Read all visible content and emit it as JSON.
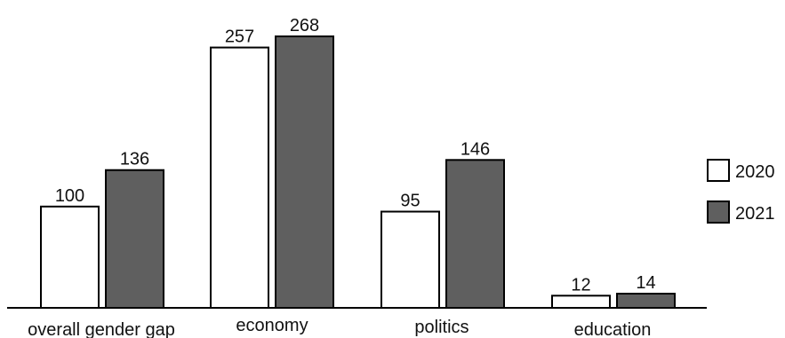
{
  "chart_data": {
    "type": "bar",
    "categories": [
      "overall gender gap",
      "economy",
      "politics",
      "education"
    ],
    "series": [
      {
        "name": "2020",
        "values": [
          100,
          257,
          95,
          12
        ],
        "color": "#ffffff"
      },
      {
        "name": "2021",
        "values": [
          136,
          268,
          146,
          14
        ],
        "color": "#5f5f5f"
      }
    ],
    "title": "",
    "xlabel": "",
    "ylabel": "",
    "ylim": [
      0,
      268
    ],
    "grid": false,
    "legend": "right"
  }
}
